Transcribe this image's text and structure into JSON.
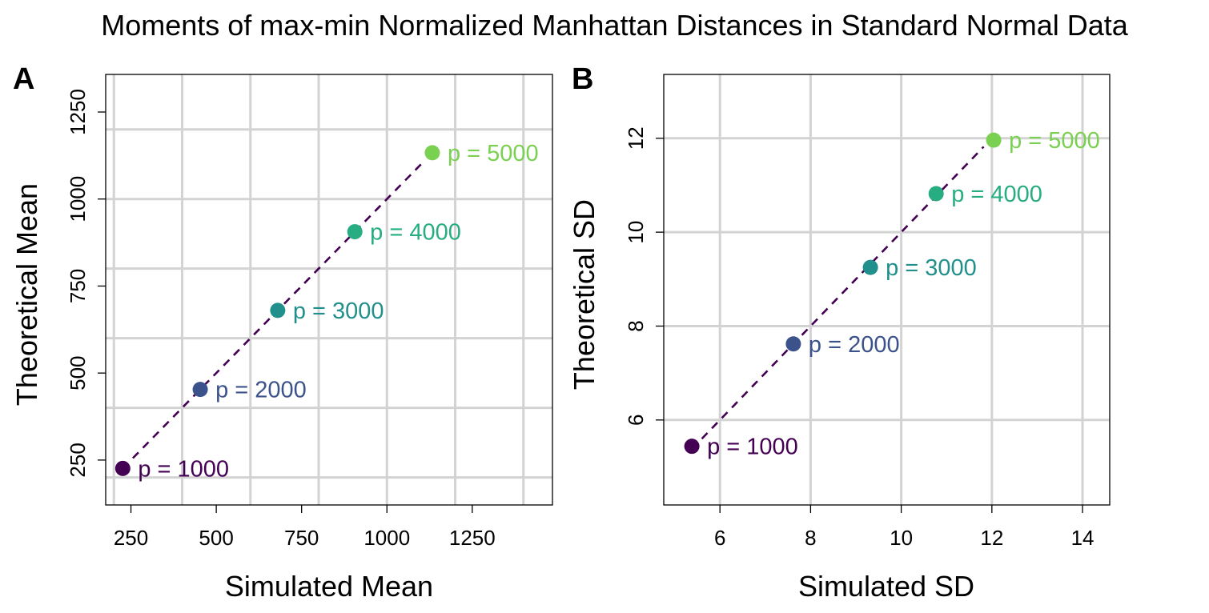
{
  "title": "Moments of max-min Normalized Manhattan Distances in Standard Normal Data",
  "colors": [
    "#440154",
    "#3b528b",
    "#21908c",
    "#27ad81",
    "#7ad151"
  ],
  "panels": [
    {
      "letter": "A",
      "xlabel": "Simulated Mean",
      "ylabel": "Theoretical Mean",
      "chart_data": {
        "type": "scatter",
        "xlim": [
          176,
          1485
        ],
        "ylim": [
          121,
          1358
        ],
        "xticks": [
          250,
          500,
          750,
          1000,
          1250
        ],
        "yticks": [
          250,
          500,
          750,
          1000,
          1250
        ],
        "grid_major": [
          200,
          400,
          600,
          800,
          1000,
          1200,
          1400
        ],
        "grid": true,
        "reference_line": "identity (dashed)",
        "points": [
          {
            "label": "p = 1000",
            "x": 226,
            "y": 226
          },
          {
            "label": "p = 2000",
            "x": 453,
            "y": 453
          },
          {
            "label": "p = 3000",
            "x": 680,
            "y": 680
          },
          {
            "label": "p = 4000",
            "x": 906,
            "y": 906
          },
          {
            "label": "p = 5000",
            "x": 1133,
            "y": 1133
          }
        ]
      }
    },
    {
      "letter": "B",
      "xlabel": "Simulated SD",
      "ylabel": "Theoretical SD",
      "chart_data": {
        "type": "scatter",
        "xlim": [
          4.76,
          14.6
        ],
        "ylim": [
          4.19,
          13.36
        ],
        "xticks": [
          6,
          8,
          10,
          12,
          14
        ],
        "yticks": [
          6,
          8,
          10,
          12
        ],
        "grid_major": [
          6,
          8,
          10,
          12,
          14
        ],
        "grid": true,
        "reference_line": "identity (dashed)",
        "points": [
          {
            "label": "p = 1000",
            "x": 5.38,
            "y": 5.44
          },
          {
            "label": "p = 2000",
            "x": 7.62,
            "y": 7.62
          },
          {
            "label": "p = 3000",
            "x": 9.32,
            "y": 9.25
          },
          {
            "label": "p = 4000",
            "x": 10.77,
            "y": 10.82
          },
          {
            "label": "p = 5000",
            "x": 12.04,
            "y": 11.96
          }
        ]
      }
    }
  ]
}
